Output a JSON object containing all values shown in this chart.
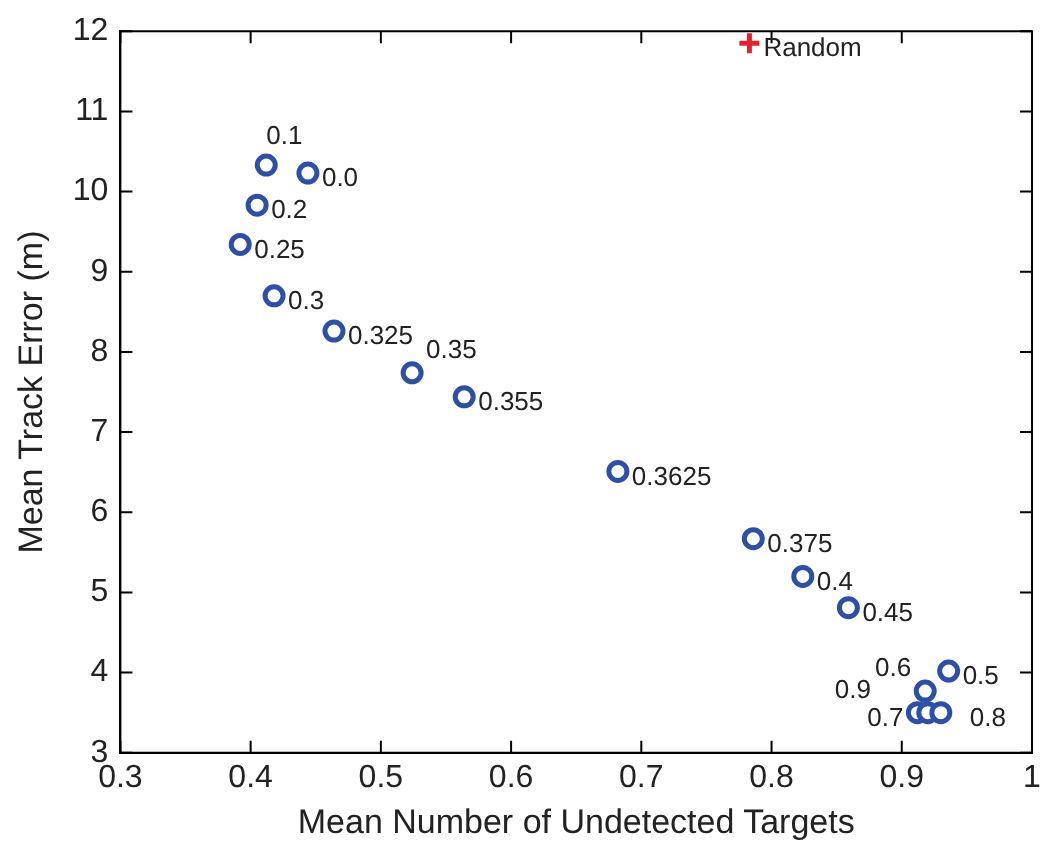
{
  "chart_data": {
    "type": "scatter",
    "xlabel": "Mean Number of Undetected Targets",
    "ylabel": "Mean Track Error (m)",
    "xlim": [
      0.3,
      1
    ],
    "xticks": [
      0.3,
      0.4,
      0.5,
      0.6,
      0.7,
      0.8,
      0.9,
      1
    ],
    "ylim": [
      3,
      12
    ],
    "yticks": [
      3,
      4,
      5,
      6,
      7,
      8,
      9,
      10,
      11,
      12
    ],
    "grid": false,
    "legend": false,
    "series": [
      {
        "color": "#2e4fa8",
        "marker": "circle",
        "x": [
          0.444,
          0.412,
          0.405,
          0.392,
          0.418,
          0.464,
          0.524,
          0.564,
          0.682,
          0.786,
          0.824,
          0.859,
          0.936,
          0.918,
          0.912,
          0.92,
          0.93
        ],
        "values": [
          10.23,
          10.33,
          9.83,
          9.34,
          8.7,
          8.26,
          7.74,
          7.44,
          6.51,
          5.67,
          5.2,
          4.81,
          4.02,
          3.77,
          3.5,
          3.5,
          3.5
        ]
      },
      {
        "color": "#e8202a",
        "marker": "cross",
        "x": [
          0.783
        ],
        "values": [
          11.85
        ]
      }
    ],
    "annotations": [
      {
        "text": "Random",
        "x": 0.783,
        "y": 11.85
      },
      {
        "text": "0.1",
        "x": 0.412,
        "y": 10.33
      },
      {
        "text": "0.0",
        "x": 0.444,
        "y": 10.23
      },
      {
        "text": "0.2",
        "x": 0.405,
        "y": 9.83
      },
      {
        "text": "0.25",
        "x": 0.392,
        "y": 9.34
      },
      {
        "text": "0.3",
        "x": 0.418,
        "y": 8.7
      },
      {
        "text": "0.325",
        "x": 0.464,
        "y": 8.26
      },
      {
        "text": "0.35",
        "x": 0.524,
        "y": 7.74
      },
      {
        "text": "0.355",
        "x": 0.564,
        "y": 7.44
      },
      {
        "text": "0.3625",
        "x": 0.682,
        "y": 6.51
      },
      {
        "text": "0.375",
        "x": 0.786,
        "y": 5.67
      },
      {
        "text": "0.4",
        "x": 0.824,
        "y": 5.2
      },
      {
        "text": "0.45",
        "x": 0.859,
        "y": 4.81
      },
      {
        "text": "0.5",
        "x": 0.936,
        "y": 4.02
      },
      {
        "text": "0.6",
        "x": 0.918,
        "y": 3.77
      },
      {
        "text": "0.7",
        "x": 0.912,
        "y": 3.5
      },
      {
        "text": "0.8",
        "x": 0.92,
        "y": 3.5
      },
      {
        "text": "0.9",
        "x": 0.93,
        "y": 3.5
      }
    ]
  }
}
